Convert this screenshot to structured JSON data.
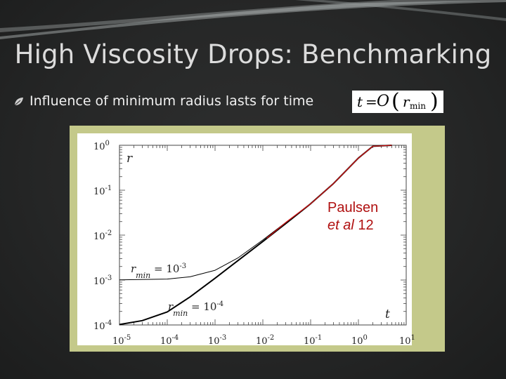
{
  "slide": {
    "title": "High Viscosity Drops: Benchmarking",
    "bullet": "Influence of minimum radius lasts for time",
    "formula": {
      "t": "t",
      "eq": "=",
      "O": "O",
      "lparen": "(",
      "r": "r",
      "sub": "min",
      "rparen": ")"
    }
  },
  "colors": {
    "background": "#262727",
    "frame": "#c4c98a",
    "curve": "#000000",
    "reference_curve": "#cc1111",
    "annotation": "#b01010"
  },
  "annotation": {
    "line1": "Paulsen",
    "line2_italic": "et al",
    "line2_rest": " 12"
  },
  "chart_data": {
    "type": "line",
    "title": "",
    "xlabel": "t",
    "ylabel": "r",
    "xscale": "log",
    "yscale": "log",
    "xlim": [
      1e-05,
      10
    ],
    "ylim": [
      0.0001,
      1
    ],
    "x_ticks": [
      {
        "base": "10",
        "exp": "-5"
      },
      {
        "base": "10",
        "exp": "-4"
      },
      {
        "base": "10",
        "exp": "-3"
      },
      {
        "base": "10",
        "exp": "-2"
      },
      {
        "base": "10",
        "exp": "-1"
      },
      {
        "base": "10",
        "exp": "0"
      },
      {
        "base": "10",
        "exp": "1"
      }
    ],
    "y_ticks": [
      {
        "base": "10",
        "exp": "0"
      },
      {
        "base": "10",
        "exp": "-1"
      },
      {
        "base": "10",
        "exp": "-2"
      },
      {
        "base": "10",
        "exp": "-3"
      },
      {
        "base": "10",
        "exp": "-4"
      }
    ],
    "series": [
      {
        "label_r": "r",
        "label_sub": "min",
        "label_eq": " = 10",
        "label_exp": "-3",
        "color": "#000000",
        "width": 1,
        "points": [
          [
            1e-05,
            0.00101
          ],
          [
            0.0001,
            0.00105
          ],
          [
            0.0003,
            0.00118
          ],
          [
            0.001,
            0.00165
          ],
          [
            0.003,
            0.0031
          ],
          [
            0.01,
            0.0078
          ],
          [
            0.03,
            0.019
          ],
          [
            0.1,
            0.05
          ],
          [
            0.3,
            0.14
          ],
          [
            1,
            0.52
          ],
          [
            2,
            0.95
          ],
          [
            5,
            1.0
          ]
        ]
      },
      {
        "label_r": "r",
        "label_sub": "min",
        "label_eq": " = 10",
        "label_exp": "-4",
        "color": "#000000",
        "width": 2,
        "points": [
          [
            1e-05,
            0.000102
          ],
          [
            3e-05,
            0.000125
          ],
          [
            0.0001,
            0.000195
          ],
          [
            0.0003,
            0.00042
          ],
          [
            0.001,
            0.0011
          ],
          [
            0.003,
            0.0027
          ],
          [
            0.01,
            0.0072
          ],
          [
            0.03,
            0.018
          ],
          [
            0.1,
            0.05
          ],
          [
            0.3,
            0.14
          ],
          [
            1,
            0.52
          ],
          [
            2,
            0.95
          ],
          [
            5,
            1.0
          ]
        ]
      },
      {
        "label_r": "",
        "label_sub": "",
        "label_eq": "",
        "label_exp": "",
        "color": "#cc1111",
        "width": 1.3,
        "points": [
          [
            0.012,
            0.0085
          ],
          [
            0.03,
            0.019
          ],
          [
            0.1,
            0.05
          ],
          [
            0.3,
            0.14
          ],
          [
            1,
            0.52
          ],
          [
            2,
            0.95
          ],
          [
            5,
            1.0
          ]
        ]
      }
    ],
    "grid": false,
    "legend": "none"
  }
}
